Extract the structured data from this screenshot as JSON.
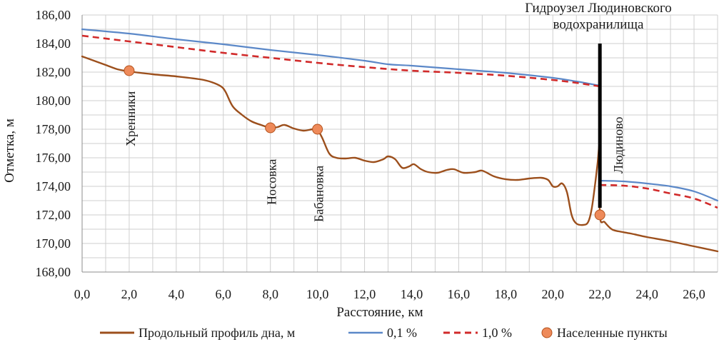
{
  "chart_data": {
    "type": "line",
    "xlabel": "Расстояние, км",
    "ylabel": "Отметка, м",
    "xlim": [
      0,
      27
    ],
    "ylim": [
      168,
      186
    ],
    "x_ticks": [
      "0,0",
      "2,0",
      "4,0",
      "6,0",
      "8,0",
      "10,0",
      "12,0",
      "14,0",
      "16,0",
      "18,0",
      "20,0",
      "22,0",
      "24,0",
      "26,0"
    ],
    "y_ticks": [
      "168,00",
      "170,00",
      "172,00",
      "174,00",
      "176,00",
      "178,00",
      "180,00",
      "182,00",
      "184,00",
      "186,00"
    ],
    "grid": true,
    "legend_position": "bottom",
    "series": [
      {
        "name": "Продольный профиль дна, м",
        "color": "#9c4f1c",
        "style": "solid",
        "points": [
          [
            0.0,
            183.1
          ],
          [
            0.5,
            182.8
          ],
          [
            1.0,
            182.5
          ],
          [
            1.5,
            182.2
          ],
          [
            2.0,
            182.05
          ],
          [
            3.0,
            181.85
          ],
          [
            4.0,
            181.7
          ],
          [
            5.0,
            181.5
          ],
          [
            5.5,
            181.3
          ],
          [
            5.9,
            181.0
          ],
          [
            6.1,
            180.6
          ],
          [
            6.4,
            179.6
          ],
          [
            6.8,
            179.0
          ],
          [
            7.2,
            178.55
          ],
          [
            7.6,
            178.3
          ],
          [
            8.0,
            178.1
          ],
          [
            8.3,
            178.15
          ],
          [
            8.6,
            178.3
          ],
          [
            9.0,
            178.05
          ],
          [
            9.4,
            177.9
          ],
          [
            9.8,
            178.0
          ],
          [
            10.0,
            177.95
          ],
          [
            10.2,
            177.4
          ],
          [
            10.5,
            176.3
          ],
          [
            10.8,
            176.0
          ],
          [
            11.2,
            175.95
          ],
          [
            11.6,
            176.0
          ],
          [
            12.0,
            175.8
          ],
          [
            12.4,
            175.7
          ],
          [
            12.8,
            175.9
          ],
          [
            13.0,
            176.1
          ],
          [
            13.3,
            175.9
          ],
          [
            13.6,
            175.3
          ],
          [
            13.9,
            175.4
          ],
          [
            14.1,
            175.55
          ],
          [
            14.4,
            175.2
          ],
          [
            14.7,
            175.0
          ],
          [
            15.1,
            174.95
          ],
          [
            15.5,
            175.15
          ],
          [
            15.8,
            175.2
          ],
          [
            16.2,
            174.95
          ],
          [
            16.7,
            175.0
          ],
          [
            17.0,
            175.1
          ],
          [
            17.5,
            174.7
          ],
          [
            18.0,
            174.5
          ],
          [
            18.5,
            174.45
          ],
          [
            19.0,
            174.55
          ],
          [
            19.5,
            174.6
          ],
          [
            19.8,
            174.45
          ],
          [
            20.0,
            174.0
          ],
          [
            20.2,
            174.0
          ],
          [
            20.4,
            174.2
          ],
          [
            20.6,
            173.6
          ],
          [
            20.8,
            172.0
          ],
          [
            21.0,
            171.4
          ],
          [
            21.3,
            171.3
          ],
          [
            21.5,
            171.5
          ],
          [
            21.65,
            172.4
          ],
          [
            21.8,
            174.2
          ],
          [
            21.9,
            175.6
          ],
          [
            22.0,
            176.9
          ],
          [
            22.0,
            172.0
          ],
          [
            22.2,
            171.5
          ],
          [
            22.5,
            171.0
          ],
          [
            22.8,
            170.85
          ],
          [
            23.3,
            170.7
          ],
          [
            24.0,
            170.45
          ],
          [
            25.0,
            170.15
          ],
          [
            26.0,
            169.8
          ],
          [
            27.0,
            169.45
          ]
        ]
      },
      {
        "name": "0,1 %",
        "color": "#5b88c8",
        "style": "solid",
        "segments": [
          [
            [
              0.0,
              185.0
            ],
            [
              2.0,
              184.7
            ],
            [
              4.0,
              184.3
            ],
            [
              6.0,
              183.95
            ],
            [
              8.0,
              183.55
            ],
            [
              10.0,
              183.2
            ],
            [
              12.0,
              182.8
            ],
            [
              13.0,
              182.55
            ],
            [
              14.0,
              182.45
            ],
            [
              16.0,
              182.2
            ],
            [
              18.0,
              181.95
            ],
            [
              20.0,
              181.6
            ],
            [
              21.0,
              181.35
            ],
            [
              22.0,
              181.05
            ]
          ],
          [
            [
              22.0,
              174.4
            ],
            [
              23.0,
              174.35
            ],
            [
              24.0,
              174.2
            ],
            [
              25.0,
              174.0
            ],
            [
              26.0,
              173.65
            ],
            [
              27.0,
              173.0
            ]
          ]
        ]
      },
      {
        "name": "1,0 %",
        "color": "#d12a2a",
        "style": "dashed",
        "segments": [
          [
            [
              0.0,
              184.55
            ],
            [
              2.0,
              184.15
            ],
            [
              4.0,
              183.75
            ],
            [
              6.0,
              183.35
            ],
            [
              8.0,
              183.0
            ],
            [
              10.0,
              182.65
            ],
            [
              12.0,
              182.35
            ],
            [
              14.0,
              182.1
            ],
            [
              16.0,
              181.95
            ],
            [
              18.0,
              181.75
            ],
            [
              20.0,
              181.45
            ],
            [
              21.0,
              181.25
            ],
            [
              22.0,
              181.0
            ]
          ],
          [
            [
              22.0,
              174.1
            ],
            [
              23.0,
              174.05
            ],
            [
              24.0,
              173.85
            ],
            [
              25.0,
              173.5
            ],
            [
              26.0,
              173.15
            ],
            [
              27.0,
              172.5
            ]
          ]
        ]
      }
    ],
    "settlements": {
      "name": "Населенные пункты",
      "color": "#ee8a5a",
      "points": [
        {
          "label": "Хренники",
          "x": 2.0,
          "y": 182.1
        },
        {
          "label": "Носовка",
          "x": 8.0,
          "y": 178.1
        },
        {
          "label": "Бабановка",
          "x": 10.0,
          "y": 178.0
        },
        {
          "label": "Людиново",
          "x": 22.0,
          "y": 172.0
        }
      ]
    },
    "dam": {
      "label_line1": "Гидроузел Людиновского",
      "label_line2": "водохранилища",
      "x": 22.0,
      "y_range": [
        172.5,
        184.0
      ]
    }
  }
}
